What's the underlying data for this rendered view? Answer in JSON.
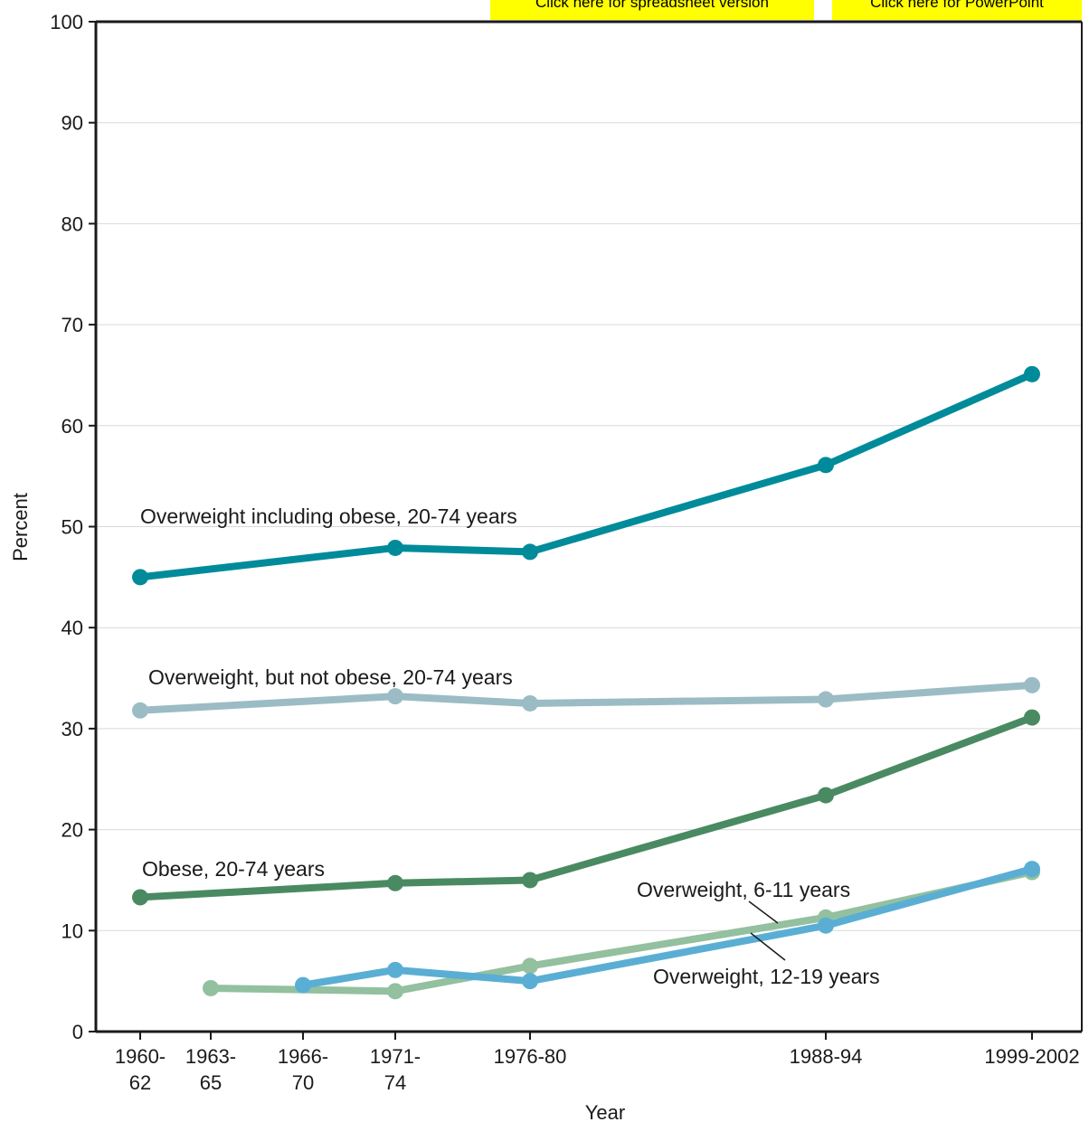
{
  "buttons": {
    "spreadsheet": "Click here for spreadsheet version",
    "powerpoint": "Click here for PowerPoint"
  },
  "chart_data": {
    "type": "line",
    "title": "",
    "xlabel": "Year",
    "ylabel": "Percent",
    "ylim": [
      0,
      100
    ],
    "yticks": [
      0,
      10,
      20,
      30,
      40,
      50,
      60,
      70,
      80,
      90,
      100
    ],
    "grid": true,
    "x_periods": [
      {
        "label": [
          "1960-",
          "62"
        ],
        "year": 1961
      },
      {
        "label": [
          "1963-",
          "65"
        ],
        "year": 1964
      },
      {
        "label": [
          "1966-",
          "70"
        ],
        "year": 1968
      },
      {
        "label": [
          "1971-",
          "74"
        ],
        "year": 1972
      },
      {
        "label": [
          "1976-80"
        ],
        "year": 1978
      },
      {
        "label": [
          "1988-94"
        ],
        "year": 1991
      },
      {
        "label": [
          "1999-2002"
        ],
        "year": 2000
      }
    ],
    "series": [
      {
        "name": "Overweight including obese, 20-74 years",
        "color": "#008b9a",
        "points": [
          [
            1961,
            45.0
          ],
          [
            1972,
            47.9
          ],
          [
            1978,
            47.5
          ],
          [
            1991,
            56.1
          ],
          [
            2000,
            65.1
          ]
        ]
      },
      {
        "name": "Overweight, but not obese, 20-74 years",
        "color": "#9bbcc4",
        "points": [
          [
            1961,
            31.8
          ],
          [
            1972,
            33.2
          ],
          [
            1978,
            32.5
          ],
          [
            1991,
            32.9
          ],
          [
            2000,
            34.3
          ]
        ]
      },
      {
        "name": "Obese, 20-74 years",
        "color": "#4a8a62",
        "points": [
          [
            1961,
            13.3
          ],
          [
            1972,
            14.7
          ],
          [
            1978,
            15.0
          ],
          [
            1991,
            23.4
          ],
          [
            2000,
            31.1
          ]
        ]
      },
      {
        "name": "Overweight, 6-11 years",
        "color": "#93c09f",
        "points": [
          [
            1964,
            4.3
          ],
          [
            1972,
            4.0
          ],
          [
            1978,
            6.5
          ],
          [
            1991,
            11.3
          ],
          [
            2000,
            15.8
          ]
        ]
      },
      {
        "name": "Overweight, 12-19 years",
        "color": "#5aaed4",
        "points": [
          [
            1968,
            4.6
          ],
          [
            1972,
            6.1
          ],
          [
            1978,
            5.0
          ],
          [
            1991,
            10.5
          ],
          [
            2000,
            16.1
          ]
        ]
      }
    ]
  }
}
